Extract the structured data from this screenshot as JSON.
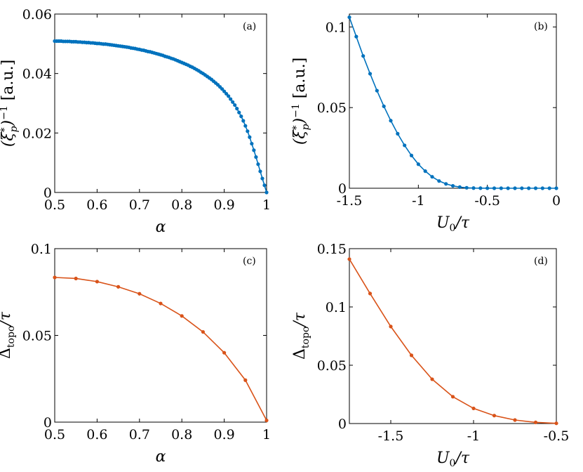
{
  "colors": {
    "blue": "#0072BD",
    "orange": "#D95319"
  },
  "chart_data": [
    {
      "id": "a",
      "type": "line",
      "panel_label": "(a)",
      "xlabel": "α",
      "ylabel": "(ξ*p)−1 [a.u.]",
      "xlim": [
        0.5,
        1.0
      ],
      "ylim": [
        0,
        0.06
      ],
      "xticks": [
        0.5,
        0.6,
        0.7,
        0.8,
        0.9,
        1.0
      ],
      "xtick_labels": [
        "0.5",
        "0.6",
        "0.7",
        "0.8",
        "0.9",
        "1"
      ],
      "yticks": [
        0,
        0.02,
        0.04,
        0.06
      ],
      "ytick_labels": [
        "0",
        "0.02",
        "0.04",
        "0.06"
      ],
      "series": [
        {
          "name": "blue",
          "color": "#0072BD",
          "x": [
            0.5,
            0.505,
            0.51,
            0.515,
            0.52,
            0.525,
            0.53,
            0.535,
            0.54,
            0.545,
            0.55,
            0.555,
            0.56,
            0.565,
            0.57,
            0.575,
            0.58,
            0.585,
            0.59,
            0.595,
            0.6,
            0.605,
            0.61,
            0.615,
            0.62,
            0.625,
            0.63,
            0.635,
            0.64,
            0.645,
            0.65,
            0.655,
            0.66,
            0.665,
            0.67,
            0.675,
            0.68,
            0.685,
            0.69,
            0.695,
            0.7,
            0.705,
            0.71,
            0.715,
            0.72,
            0.725,
            0.73,
            0.735,
            0.74,
            0.745,
            0.75,
            0.755,
            0.76,
            0.765,
            0.77,
            0.775,
            0.78,
            0.785,
            0.79,
            0.795,
            0.8,
            0.805,
            0.81,
            0.815,
            0.82,
            0.825,
            0.83,
            0.835,
            0.84,
            0.845,
            0.85,
            0.855,
            0.86,
            0.865,
            0.87,
            0.875,
            0.88,
            0.885,
            0.89,
            0.895,
            0.9,
            0.905,
            0.91,
            0.915,
            0.92,
            0.925,
            0.93,
            0.935,
            0.94,
            0.945,
            0.95,
            0.955,
            0.96,
            0.965,
            0.97,
            0.975,
            0.98,
            0.985,
            0.99,
            0.995,
            1.0
          ],
          "y": [
            0.0509,
            0.0509,
            0.0509,
            0.0509,
            0.0508,
            0.0508,
            0.0508,
            0.0508,
            0.0507,
            0.0507,
            0.0507,
            0.0506,
            0.0506,
            0.0505,
            0.0505,
            0.0504,
            0.0504,
            0.0503,
            0.0503,
            0.0502,
            0.0501,
            0.0501,
            0.05,
            0.0499,
            0.0499,
            0.0498,
            0.0497,
            0.0496,
            0.0495,
            0.0494,
            0.0493,
            0.0492,
            0.0491,
            0.049,
            0.0489,
            0.0488,
            0.0486,
            0.0485,
            0.0484,
            0.0482,
            0.0481,
            0.0479,
            0.0478,
            0.0476,
            0.0474,
            0.0473,
            0.0471,
            0.0469,
            0.0467,
            0.0465,
            0.0463,
            0.0461,
            0.0458,
            0.0456,
            0.0454,
            0.0451,
            0.0449,
            0.0446,
            0.0443,
            0.044,
            0.0437,
            0.0434,
            0.0431,
            0.0428,
            0.0424,
            0.0421,
            0.0417,
            0.0413,
            0.0409,
            0.0404,
            0.04,
            0.0395,
            0.039,
            0.0385,
            0.038,
            0.0374,
            0.0368,
            0.0362,
            0.0355,
            0.0348,
            0.034,
            0.0332,
            0.0324,
            0.0314,
            0.0304,
            0.0294,
            0.0282,
            0.0269,
            0.0256,
            0.0241,
            0.0224,
            0.0206,
            0.0186,
            0.0164,
            0.0142,
            0.0119,
            0.0095,
            0.0071,
            0.0047,
            0.0024,
            0.0
          ]
        }
      ]
    },
    {
      "id": "b",
      "type": "line",
      "panel_label": "(b)",
      "xlabel": "U0/τ",
      "ylabel": "(ξ*p)−1 [a.u.]",
      "xlim": [
        -1.5,
        0
      ],
      "ylim": [
        0,
        0.108
      ],
      "xticks": [
        -1.5,
        -1.0,
        -0.5,
        0
      ],
      "xtick_labels": [
        "-1.5",
        "-1",
        "-0.5",
        "0"
      ],
      "yticks": [
        0,
        0.05,
        0.1
      ],
      "ytick_labels": [
        "0",
        "0.05",
        "0.1"
      ],
      "series": [
        {
          "name": "blue",
          "color": "#0072BD",
          "x": [
            -1.5,
            -1.45,
            -1.4,
            -1.35,
            -1.3,
            -1.25,
            -1.2,
            -1.15,
            -1.1,
            -1.05,
            -1.0,
            -0.95,
            -0.9,
            -0.85,
            -0.8,
            -0.75,
            -0.7,
            -0.65,
            -0.6,
            -0.55,
            -0.5,
            -0.45,
            -0.4,
            -0.35,
            -0.3,
            -0.25,
            -0.2,
            -0.15,
            -0.1,
            -0.05,
            0.0
          ],
          "y": [
            0.106,
            0.094,
            0.082,
            0.071,
            0.0605,
            0.0508,
            0.0419,
            0.0338,
            0.0266,
            0.0203,
            0.0149,
            0.0106,
            0.0071,
            0.0045,
            0.0027,
            0.0015,
            0.0007,
            0.0003,
            0.0001,
            4e-05,
            2e-05,
            1e-05,
            0.0,
            0.0,
            0.0,
            0.0,
            0.0,
            0.0,
            0.0,
            0.0,
            0.0
          ]
        }
      ]
    },
    {
      "id": "c",
      "type": "line",
      "panel_label": "(c)",
      "xlabel": "α",
      "ylabel": "Δtopo/τ",
      "xlim": [
        0.5,
        1.0
      ],
      "ylim": [
        0,
        0.1
      ],
      "xticks": [
        0.5,
        0.6,
        0.7,
        0.8,
        0.9,
        1.0
      ],
      "xtick_labels": [
        "0.5",
        "0.6",
        "0.7",
        "0.8",
        "0.9",
        "1"
      ],
      "yticks": [
        0,
        0.05,
        0.1
      ],
      "ytick_labels": [
        "0",
        "0.05",
        "0.1"
      ],
      "series": [
        {
          "name": "orange",
          "color": "#D95319",
          "x": [
            0.5,
            0.55,
            0.6,
            0.65,
            0.7,
            0.75,
            0.8,
            0.85,
            0.9,
            0.95,
            1.0
          ],
          "y": [
            0.0834,
            0.0828,
            0.081,
            0.078,
            0.074,
            0.0684,
            0.0612,
            0.052,
            0.04,
            0.0242,
            0.001
          ]
        }
      ]
    },
    {
      "id": "d",
      "type": "line",
      "panel_label": "(d)",
      "xlabel": "U0/τ",
      "ylabel": "Δtopo/τ",
      "xlim": [
        -1.75,
        -0.5
      ],
      "ylim": [
        0,
        0.15
      ],
      "xticks": [
        -1.5,
        -1.0,
        -0.5
      ],
      "xtick_labels": [
        "-1.5",
        "-1",
        "-0.5"
      ],
      "yticks": [
        0,
        0.05,
        0.1,
        0.15
      ],
      "ytick_labels": [
        "0",
        "0.05",
        "0.1",
        "0.15"
      ],
      "series": [
        {
          "name": "orange",
          "color": "#D95319",
          "x": [
            -1.75,
            -1.625,
            -1.5,
            -1.375,
            -1.25,
            -1.125,
            -1.0,
            -0.875,
            -0.75,
            -0.625,
            -0.5
          ],
          "y": [
            0.141,
            0.1115,
            0.0832,
            0.0585,
            0.038,
            0.023,
            0.013,
            0.0068,
            0.003,
            0.001,
            0.0002
          ]
        }
      ]
    }
  ]
}
